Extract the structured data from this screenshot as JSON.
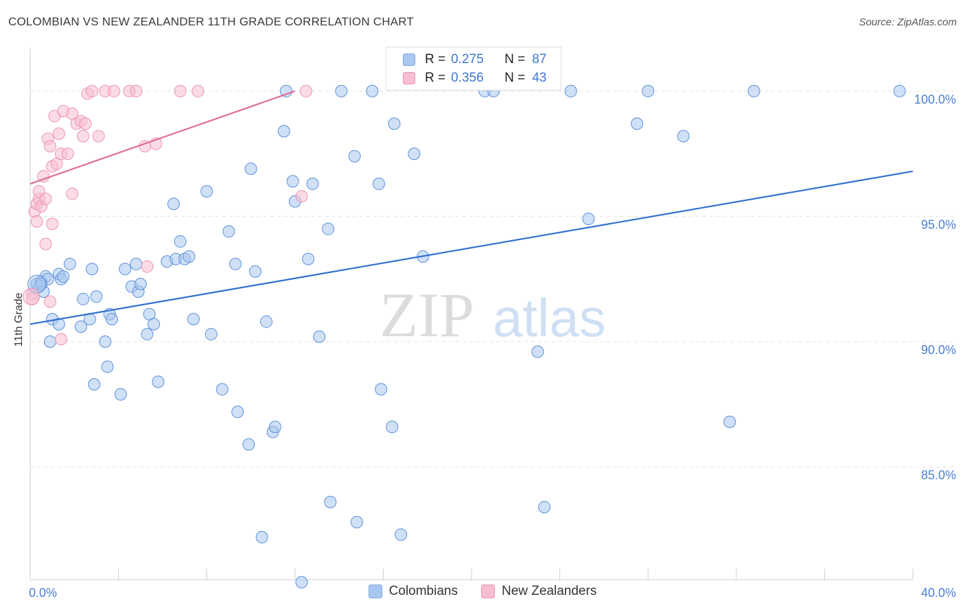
{
  "title": "COLOMBIAN VS NEW ZEALANDER 11TH GRADE CORRELATION CHART",
  "source": "Source: ZipAtlas.com",
  "watermark": {
    "zip": "ZIP",
    "atlas": "atlas"
  },
  "legend_top": [
    {
      "r_label": "R =",
      "r_value": "0.275",
      "n_label": "N =",
      "n_value": "87",
      "color": "#a9c8f0",
      "border": "#7aa6e0"
    },
    {
      "r_label": "R =",
      "r_value": "0.356",
      "n_label": "N =",
      "n_value": "43",
      "color": "#f7bfd0",
      "border": "#ec93b0"
    }
  ],
  "legend_bottom": [
    {
      "label": "Colombians",
      "color": "#a9c8f0",
      "border": "#7aa6e0"
    },
    {
      "label": "New Zealanders",
      "color": "#f7bfd0",
      "border": "#ec93b0"
    }
  ],
  "chart_data": {
    "type": "scatter",
    "title": "COLOMBIAN VS NEW ZEALANDER 11TH GRADE CORRELATION CHART",
    "xlabel": "",
    "ylabel": "11th Grade",
    "xlim": [
      0,
      40
    ],
    "ylim": [
      80.5,
      101.5
    ],
    "x_tick_labels": [
      "0.0%",
      "40.0%"
    ],
    "y_ticks": [
      85,
      90,
      95,
      100
    ],
    "y_tick_labels": [
      "85.0%",
      "90.0%",
      "95.0%",
      "100.0%"
    ],
    "grid": true,
    "series": [
      {
        "name": "Colombians",
        "color": "#a9c8f0",
        "edge": "#5b8fd6",
        "trend": {
          "x": [
            0,
            40
          ],
          "y": [
            90.7,
            96.8
          ],
          "color": "#2f6fcf"
        },
        "points": [
          [
            0.3,
            92.3
          ],
          [
            0.4,
            92.2
          ],
          [
            0.5,
            92.4
          ],
          [
            0.6,
            92.0
          ],
          [
            0.7,
            92.6
          ],
          [
            0.8,
            92.5
          ],
          [
            1.3,
            92.7
          ],
          [
            1.4,
            92.5
          ],
          [
            1.5,
            92.6
          ],
          [
            0.5,
            92.3
          ],
          [
            1.0,
            90.9
          ],
          [
            1.3,
            90.7
          ],
          [
            1.8,
            93.1
          ],
          [
            2.3,
            90.6
          ],
          [
            2.4,
            91.7
          ],
          [
            2.7,
            90.9
          ],
          [
            2.8,
            92.9
          ],
          [
            3.0,
            91.8
          ],
          [
            3.4,
            90.0
          ],
          [
            3.5,
            89.0
          ],
          [
            3.6,
            91.1
          ],
          [
            3.7,
            90.9
          ],
          [
            2.9,
            88.3
          ],
          [
            4.1,
            87.9
          ],
          [
            4.3,
            92.9
          ],
          [
            4.6,
            92.2
          ],
          [
            4.8,
            93.1
          ],
          [
            4.9,
            92.0
          ],
          [
            5.0,
            92.3
          ],
          [
            5.4,
            91.1
          ],
          [
            6.2,
            93.2
          ],
          [
            6.6,
            93.3
          ],
          [
            7.0,
            93.3
          ],
          [
            7.2,
            93.4
          ],
          [
            5.3,
            90.3
          ],
          [
            5.6,
            90.7
          ],
          [
            5.8,
            88.4
          ],
          [
            6.5,
            95.5
          ],
          [
            6.8,
            94.0
          ],
          [
            8.0,
            96.0
          ],
          [
            7.4,
            90.9
          ],
          [
            8.2,
            90.3
          ],
          [
            8.7,
            88.1
          ],
          [
            9.0,
            94.4
          ],
          [
            9.3,
            93.1
          ],
          [
            9.4,
            87.2
          ],
          [
            9.9,
            85.9
          ],
          [
            10.0,
            96.9
          ],
          [
            10.2,
            92.8
          ],
          [
            10.7,
            90.8
          ],
          [
            11.0,
            86.4
          ],
          [
            11.1,
            86.6
          ],
          [
            11.5,
            98.4
          ],
          [
            11.6,
            100.0
          ],
          [
            11.9,
            96.4
          ],
          [
            12.0,
            95.6
          ],
          [
            12.6,
            93.3
          ],
          [
            12.8,
            96.3
          ],
          [
            13.1,
            90.2
          ],
          [
            13.5,
            94.5
          ],
          [
            13.6,
            83.6
          ],
          [
            14.1,
            100.0
          ],
          [
            14.7,
            97.4
          ],
          [
            14.8,
            82.8
          ],
          [
            15.5,
            100.0
          ],
          [
            15.8,
            96.3
          ],
          [
            15.9,
            88.1
          ],
          [
            16.4,
            86.6
          ],
          [
            16.5,
            98.7
          ],
          [
            16.8,
            82.3
          ],
          [
            17.4,
            97.5
          ],
          [
            17.8,
            93.4
          ],
          [
            12.3,
            80.4
          ],
          [
            10.5,
            82.2
          ],
          [
            20.6,
            100.0
          ],
          [
            21.0,
            100.0
          ],
          [
            23.0,
            89.6
          ],
          [
            23.3,
            83.4
          ],
          [
            24.5,
            100.0
          ],
          [
            25.3,
            94.9
          ],
          [
            27.5,
            98.7
          ],
          [
            28.0,
            100.0
          ],
          [
            29.6,
            98.2
          ],
          [
            31.7,
            86.8
          ],
          [
            32.8,
            100.0
          ],
          [
            39.4,
            100.0
          ],
          [
            0.9,
            90.0
          ]
        ]
      },
      {
        "name": "New Zealanders",
        "color": "#f7bfd0",
        "edge": "#ec93b0",
        "trend": {
          "x": [
            0,
            12
          ],
          "y": [
            96.3,
            100.0
          ],
          "color": "#e06b96"
        },
        "points": [
          [
            0.1,
            91.9
          ],
          [
            0.1,
            91.7
          ],
          [
            0.2,
            95.2
          ],
          [
            0.3,
            95.5
          ],
          [
            0.4,
            95.7
          ],
          [
            0.3,
            94.8
          ],
          [
            0.4,
            96.0
          ],
          [
            0.5,
            95.4
          ],
          [
            0.6,
            96.6
          ],
          [
            0.7,
            95.7
          ],
          [
            0.7,
            93.9
          ],
          [
            0.8,
            98.1
          ],
          [
            0.9,
            97.8
          ],
          [
            0.9,
            91.6
          ],
          [
            1.0,
            97.0
          ],
          [
            1.0,
            94.7
          ],
          [
            1.1,
            99.0
          ],
          [
            1.2,
            97.1
          ],
          [
            1.3,
            98.3
          ],
          [
            1.4,
            97.5
          ],
          [
            1.4,
            90.1
          ],
          [
            1.5,
            99.2
          ],
          [
            1.7,
            97.5
          ],
          [
            1.9,
            99.1
          ],
          [
            1.9,
            95.9
          ],
          [
            2.1,
            98.7
          ],
          [
            2.3,
            98.8
          ],
          [
            2.4,
            98.2
          ],
          [
            2.5,
            98.7
          ],
          [
            2.6,
            99.9
          ],
          [
            2.8,
            100.0
          ],
          [
            3.1,
            98.2
          ],
          [
            3.4,
            100.0
          ],
          [
            3.8,
            100.0
          ],
          [
            4.5,
            100.0
          ],
          [
            4.8,
            100.0
          ],
          [
            5.2,
            97.8
          ],
          [
            5.7,
            97.9
          ],
          [
            5.3,
            93.0
          ],
          [
            6.8,
            100.0
          ],
          [
            7.6,
            100.0
          ],
          [
            12.3,
            95.8
          ],
          [
            12.5,
            100.0
          ]
        ]
      }
    ]
  }
}
